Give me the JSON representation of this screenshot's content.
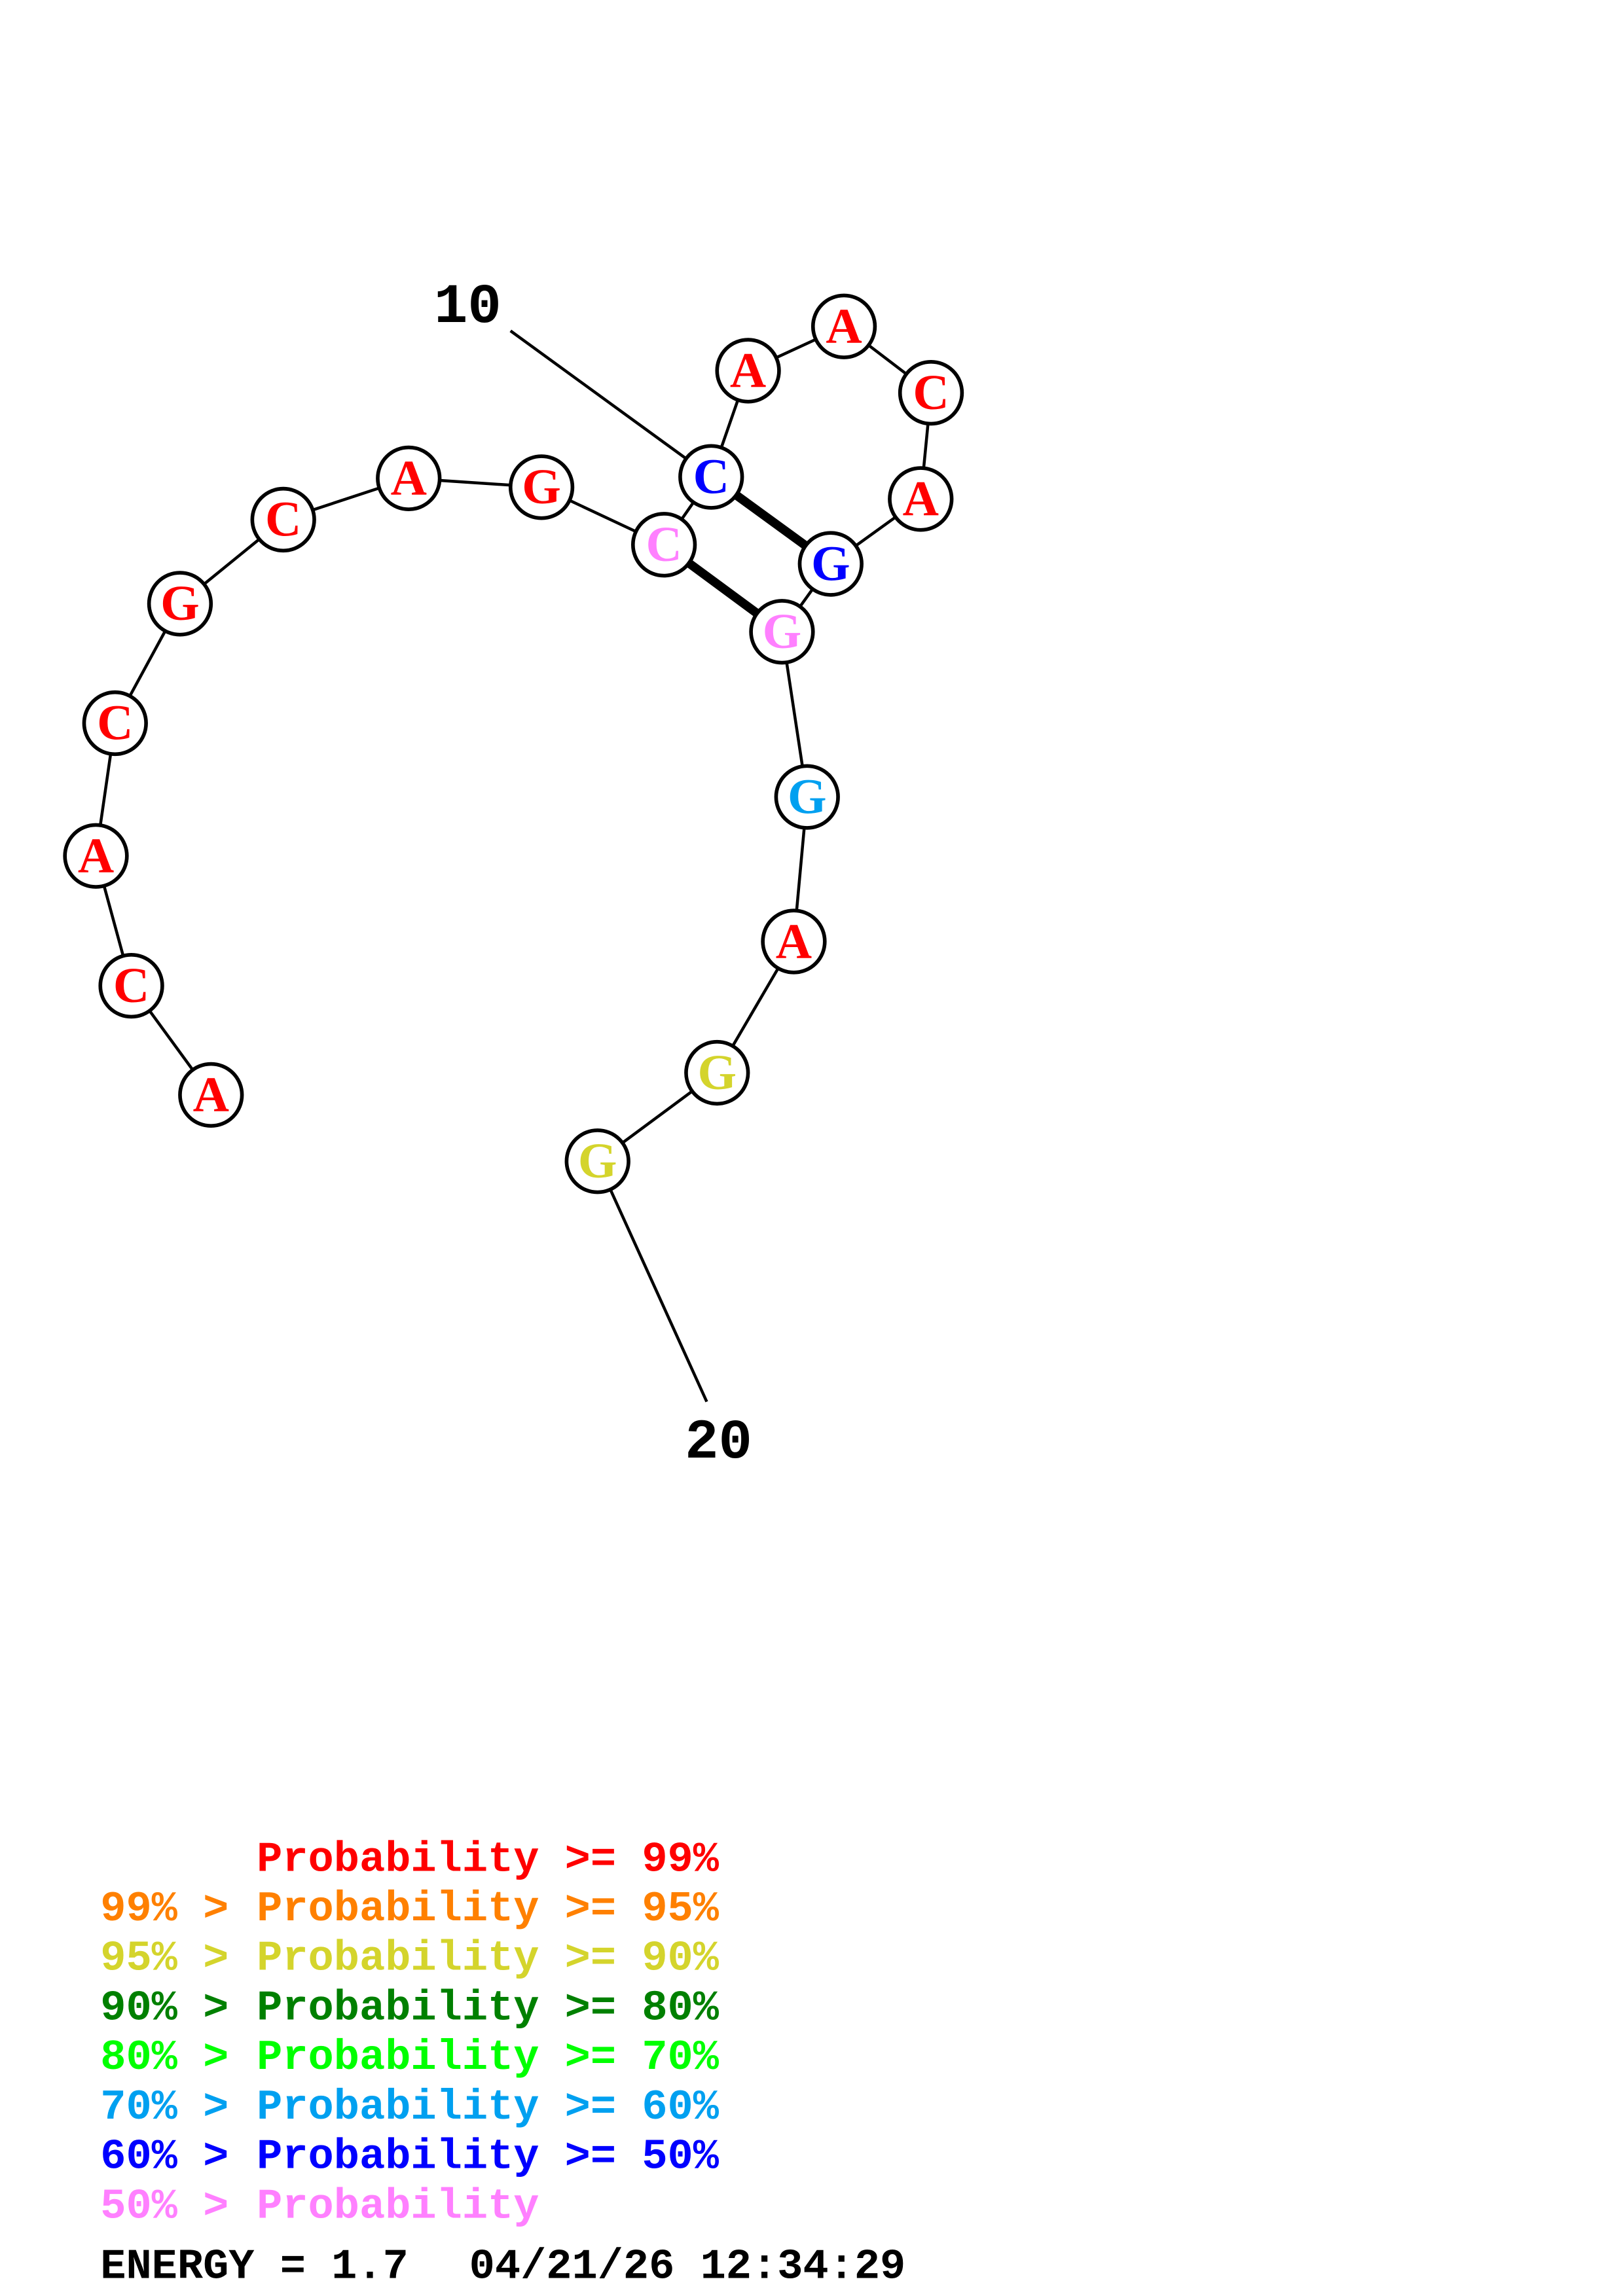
{
  "structure": {
    "sequence": [
      "A",
      "C",
      "A",
      "C",
      "G",
      "C",
      "A",
      "G",
      "C",
      "C",
      "A",
      "A",
      "C",
      "A",
      "G",
      "G",
      "G",
      "A",
      "G",
      "G"
    ],
    "probability_class": [
      "ge99",
      "ge99",
      "ge99",
      "ge99",
      "ge99",
      "ge99",
      "ge99",
      "ge99",
      "lt50",
      "50to60",
      "ge99",
      "ge99",
      "ge99",
      "ge99",
      "50to60",
      "lt50",
      "60to70",
      "ge99",
      "90to95",
      "90to95"
    ],
    "pairs": [
      [
        9,
        16
      ],
      [
        10,
        15
      ]
    ],
    "number_labels": [
      {
        "position": 10,
        "text": "10"
      },
      {
        "position": 20,
        "text": "20"
      }
    ]
  },
  "class_colors": {
    "ge99": "#ff0000",
    "95to99": "#ff8000",
    "90to95": "#d4d42c",
    "80to90": "#008000",
    "70to80": "#00ff00",
    "60to70": "#00a0f0",
    "50to60": "#0000ff",
    "lt50": "#ff80ff"
  },
  "legend": [
    {
      "prefix": "",
      "text": "Probability >= 99%",
      "color": "#ff0000"
    },
    {
      "prefix": "99% >",
      "text": "Probability >= 95%",
      "color": "#ff8000"
    },
    {
      "prefix": "95% >",
      "text": "Probability >= 90%",
      "color": "#d4d42c"
    },
    {
      "prefix": "90% >",
      "text": "Probability >= 80%",
      "color": "#008000"
    },
    {
      "prefix": "80% >",
      "text": "Probability >= 70%",
      "color": "#00ff00"
    },
    {
      "prefix": "70% >",
      "text": "Probability >= 60%",
      "color": "#00a0f0"
    },
    {
      "prefix": "60% >",
      "text": "Probability >= 50%",
      "color": "#0000ff"
    },
    {
      "prefix": "50% >",
      "text": "Probability",
      "color": "#ff80ff"
    }
  ],
  "footer": {
    "energy": "ENERGY = 1.7",
    "timestamp": "04/21/26 12:34:29"
  }
}
